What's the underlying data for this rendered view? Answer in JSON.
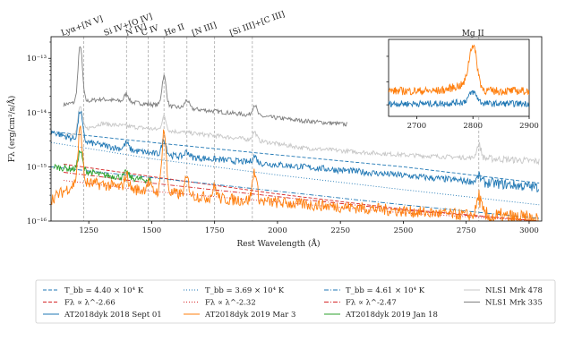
{
  "chart_data": {
    "type": "line",
    "xlabel": "Rest Wavelength (Å)",
    "ylabel": "Fλ (erg/cm²/s/Å)",
    "xlim": [
      1100,
      3050
    ],
    "ylim_log10": [
      -16,
      -12.6
    ],
    "x_ticks": [
      1250,
      1500,
      1750,
      2000,
      2250,
      2500,
      2750,
      3000
    ],
    "x_tick_labels": [
      "1250",
      "1500",
      "1750",
      "2000",
      "2250",
      "2500",
      "2750",
      "3000"
    ],
    "y_ticks_log10": [
      -16,
      -15,
      -14,
      -13
    ],
    "y_tick_labels": [
      "10⁻¹⁶",
      "10⁻¹⁵",
      "10⁻¹⁴",
      "10⁻¹³"
    ],
    "line_markers": [
      {
        "label": "Lyα+[N V]",
        "wavelength": 1230
      },
      {
        "label": "Si IV+[O IV]",
        "wavelength": 1400
      },
      {
        "label": "N IV]",
        "wavelength": 1486
      },
      {
        "label": "C IV",
        "wavelength": 1549
      },
      {
        "label": "He II",
        "wavelength": 1640
      },
      {
        "label": "[N III]",
        "wavelength": 1750
      },
      {
        "label": "[Si III]+[C III]",
        "wavelength": 1900
      },
      {
        "label": "Mg II",
        "wavelength": 2800
      }
    ],
    "series": [
      {
        "name": "AT2018dyk 2018 Sept 01",
        "color": "#1f77b4",
        "style": "solid",
        "wl": [
          1100,
          1200,
          1300,
          1400,
          1500,
          1600,
          1700,
          1800,
          1900,
          2000,
          2200,
          2400,
          2600,
          2800,
          3040
        ],
        "log_flux": [
          -14.35,
          -14.5,
          -14.6,
          -14.68,
          -14.75,
          -14.8,
          -14.84,
          -14.88,
          -14.92,
          -14.96,
          -15.04,
          -15.12,
          -15.2,
          -15.28,
          -15.38
        ],
        "lines": [
          [
            1216,
            0.55
          ],
          [
            1400,
            0.12
          ],
          [
            1549,
            0.28
          ],
          [
            1640,
            0.1
          ],
          [
            1909,
            0.12
          ],
          [
            2800,
            0.1
          ]
        ]
      },
      {
        "name": "AT2018dyk 2019 Mar 3",
        "color": "#ff7f0e",
        "style": "solid",
        "wl": [
          1100,
          1200,
          1300,
          1400,
          1500,
          1600,
          1700,
          1800,
          1900,
          2000,
          2200,
          2400,
          2600,
          2800,
          3040
        ],
        "log_flux": [
          -15.6,
          -15.3,
          -15.32,
          -15.4,
          -15.45,
          -15.5,
          -15.55,
          -15.6,
          -15.62,
          -15.66,
          -15.72,
          -15.78,
          -15.85,
          -15.9,
          -16.0
        ],
        "lines": [
          [
            1216,
            1.0
          ],
          [
            1400,
            0.25
          ],
          [
            1486,
            0.15
          ],
          [
            1549,
            1.15
          ],
          [
            1640,
            0.3
          ],
          [
            1750,
            0.2
          ],
          [
            1909,
            0.55
          ],
          [
            2800,
            0.35
          ]
        ]
      },
      {
        "name": "AT2018dyk 2019 Jan 18",
        "color": "#2ca02c",
        "style": "solid",
        "wl": [
          1110,
          1200,
          1260,
          1300,
          1400,
          1500
        ],
        "log_flux": [
          -15.0,
          -15.05,
          -15.1,
          -15.15,
          -15.2,
          -15.25
        ],
        "lines": [
          [
            1216,
            0.35
          ],
          [
            1400,
            0.1
          ]
        ]
      },
      {
        "name": "NLS1 Mrk 478",
        "color": "#c7c7c7",
        "style": "solid",
        "wl": [
          1150,
          1300,
          1500,
          1700,
          1900,
          2100,
          2300,
          2500,
          2700,
          2900,
          3040
        ],
        "log_flux": [
          -14.45,
          -14.2,
          -14.3,
          -14.4,
          -14.5,
          -14.65,
          -14.72,
          -14.78,
          -14.82,
          -14.86,
          -14.9
        ],
        "lines": [
          [
            1216,
            0.45
          ],
          [
            1549,
            0.25
          ],
          [
            1909,
            0.15
          ],
          [
            2800,
            0.25
          ]
        ]
      },
      {
        "name": "NLS1 Mrk 335",
        "color": "#7f7f7f",
        "style": "solid",
        "wl": [
          1150,
          1300,
          1500,
          1700,
          1900,
          2100,
          2280
        ],
        "log_flux": [
          -13.85,
          -13.75,
          -13.85,
          -13.95,
          -14.05,
          -14.15,
          -14.22
        ],
        "lines": [
          [
            1216,
            1.05
          ],
          [
            1400,
            0.15
          ],
          [
            1549,
            0.55
          ],
          [
            1640,
            0.15
          ],
          [
            1909,
            0.2
          ]
        ]
      },
      {
        "name": "T_bb = 4.40 × 10⁴ K",
        "color": "#1f77b4",
        "style": "dashed",
        "wl": [
          1100,
          1500,
          2000,
          2500,
          3040
        ],
        "log_flux": [
          -14.35,
          -14.55,
          -14.78,
          -15.0,
          -15.3
        ],
        "lines": []
      },
      {
        "name": "Fλ ∝ λ^-2.66",
        "color": "#d62728",
        "style": "dashed",
        "wl": [
          1150,
          1500,
          2000,
          2500,
          3040
        ],
        "log_flux": [
          -14.95,
          -15.18,
          -15.5,
          -15.78,
          -16.0
        ],
        "lines": []
      },
      {
        "name": "T_bb = 3.69 × 10⁴ K",
        "color": "#1f77b4",
        "style": "dotted",
        "wl": [
          1100,
          1500,
          2000,
          2500,
          3040
        ],
        "log_flux": [
          -14.55,
          -14.85,
          -15.15,
          -15.42,
          -15.7
        ],
        "lines": []
      },
      {
        "name": "Fλ ∝ λ^-2.32",
        "color": "#d62728",
        "style": "dotted",
        "wl": [
          1150,
          1500,
          2000,
          2500,
          3040
        ],
        "log_flux": [
          -15.25,
          -15.45,
          -15.65,
          -15.85,
          -16.0
        ],
        "lines": []
      },
      {
        "name": "T_bb = 4.61 × 10⁴ K",
        "color": "#1f77b4",
        "style": "dashdot",
        "wl": [
          1100,
          1500,
          2000,
          2500,
          3040
        ],
        "log_flux": [
          -15.0,
          -15.2,
          -15.45,
          -15.7,
          -15.95
        ],
        "lines": []
      },
      {
        "name": "Fλ ∝ λ^-2.47",
        "color": "#d62728",
        "style": "dashdot",
        "wl": [
          1150,
          1500,
          2000,
          2500,
          3040
        ],
        "log_flux": [
          -15.1,
          -15.3,
          -15.55,
          -15.8,
          -16.0
        ],
        "lines": []
      }
    ],
    "inset": {
      "title": "Mg II",
      "xlim": [
        2650,
        2900
      ],
      "x_ticks": [
        2700,
        2800,
        2900
      ],
      "x_tick_labels": [
        "2700",
        "2800",
        "2900"
      ]
    },
    "legend": {
      "placement": "below-chart",
      "entries": [
        {
          "label": "T_bb = 4.40 × 10⁴ K",
          "color": "#1f77b4",
          "style": "dashed"
        },
        {
          "label": "Fλ ∝ λ^-2.66",
          "color": "#d62728",
          "style": "dashed"
        },
        {
          "label": "AT2018dyk 2018 Sept 01",
          "color": "#1f77b4",
          "style": "solid"
        },
        {
          "label": "T_bb = 3.69 × 10⁴ K",
          "color": "#1f77b4",
          "style": "dotted"
        },
        {
          "label": "Fλ ∝ λ^-2.32",
          "color": "#d62728",
          "style": "dotted"
        },
        {
          "label": "AT2018dyk 2019 Mar 3",
          "color": "#ff7f0e",
          "style": "solid"
        },
        {
          "label": "T_bb = 4.61 × 10⁴ K",
          "color": "#1f77b4",
          "style": "dashdot"
        },
        {
          "label": "Fλ ∝ λ^-2.47",
          "color": "#d62728",
          "style": "dashdot"
        },
        {
          "label": "AT2018dyk 2019 Jan 18",
          "color": "#2ca02c",
          "style": "solid"
        },
        {
          "label": "NLS1 Mrk 478",
          "color": "#c7c7c7",
          "style": "solid"
        },
        {
          "label": "NLS1 Mrk 335",
          "color": "#7f7f7f",
          "style": "solid"
        }
      ]
    }
  }
}
